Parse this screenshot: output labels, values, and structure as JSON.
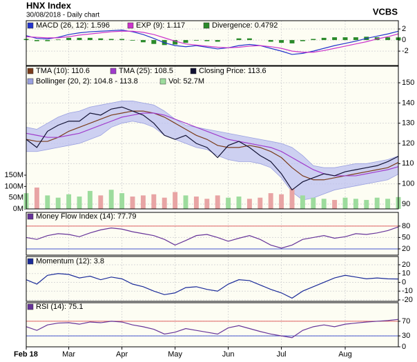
{
  "header": {
    "title": "HNX Index",
    "subtitle": "30/08/2018 - Daily chart",
    "brand": "VCBS"
  },
  "chart_data": [
    {
      "type": "line",
      "ylim": [
        -4.6,
        3.5
      ],
      "yticks": [
        2,
        0,
        -2
      ],
      "grid": true,
      "series": [
        {
          "name": "MACD (26, 12): 1.596",
          "color": "#2233cc",
          "style": "line",
          "values": [
            0.8,
            0.3,
            0.2,
            0.5,
            1,
            1.3,
            1.5,
            1.6,
            1.7,
            1.8,
            1.5,
            1,
            0.3,
            -0.5,
            -1,
            -1.2,
            -1,
            -1.3,
            -1.6,
            -1.4,
            -1,
            -0.8,
            -1,
            -1.5,
            -2,
            -2.6,
            -2.4,
            -2,
            -1.5,
            -1,
            -0.6,
            -0.2,
            0.3,
            0.7,
            1.1,
            1.596
          ]
        },
        {
          "name": "EXP (9): 1.117",
          "color": "#cc33cc",
          "style": "line",
          "values": [
            0.6,
            0.5,
            0.4,
            0.4,
            0.6,
            0.9,
            1.1,
            1.3,
            1.5,
            1.6,
            1.6,
            1.4,
            1,
            0.4,
            -0.2,
            -0.7,
            -0.9,
            -1.1,
            -1.3,
            -1.4,
            -1.3,
            -1.1,
            -1,
            -1.2,
            -1.5,
            -2,
            -2.2,
            -2.2,
            -1.9,
            -1.5,
            -1.1,
            -0.7,
            -0.3,
            0.2,
            0.6,
            1.117
          ]
        },
        {
          "name": "Divergence: 0.4792",
          "color": "#2a8a2a",
          "style": "bar",
          "values": [
            0.2,
            -0.2,
            -0.2,
            0.1,
            0.4,
            0.4,
            0.4,
            0.3,
            0.2,
            0.2,
            -0.1,
            -0.4,
            -0.7,
            -0.9,
            -0.8,
            -0.5,
            -0.1,
            -0.2,
            -0.3,
            0,
            0.3,
            0.3,
            0,
            -0.3,
            -0.5,
            -0.6,
            -0.2,
            0.2,
            0.4,
            0.5,
            0.5,
            0.5,
            0.6,
            0.5,
            0.5,
            0.4792
          ]
        }
      ]
    },
    {
      "type": "line",
      "ylim": [
        87.6,
        158.2
      ],
      "yticks": [
        90,
        100,
        110,
        120,
        130,
        140,
        150
      ],
      "grid": true,
      "y2lim": [
        0,
        634
      ],
      "y2ticks": [
        {
          "value": 0,
          "label": "0M"
        },
        {
          "value": 50,
          "label": "50M"
        },
        {
          "value": 100,
          "label": "100M"
        },
        {
          "value": 150,
          "label": "150M"
        }
      ],
      "series": [
        {
          "name": "TMA (10): 110.6",
          "color": "#7a3b1a",
          "style": "line",
          "values": [
            122,
            121,
            121,
            123,
            126,
            128,
            130,
            132,
            134,
            135,
            136,
            136,
            135,
            133,
            130,
            127,
            124,
            122,
            119,
            118,
            118,
            119,
            118,
            116,
            113,
            108,
            104,
            102,
            102,
            103,
            104,
            105,
            106,
            107,
            108,
            110.6
          ]
        },
        {
          "name": "TMA (25): 108.5",
          "color": "#a03ccc",
          "style": "line",
          "values": [
            125,
            124,
            123,
            123,
            124,
            125,
            127,
            129,
            131,
            133,
            134,
            135,
            135,
            134,
            132,
            130,
            128,
            126,
            124,
            122,
            121,
            120,
            119,
            118,
            116,
            113,
            110,
            107,
            105,
            104,
            104,
            104,
            105,
            106,
            107,
            108.5
          ]
        },
        {
          "name": "Closing Price: 113.6",
          "color": "#111133",
          "style": "line",
          "values": [
            122,
            118,
            126,
            129,
            131,
            131,
            135,
            134,
            137,
            138,
            136,
            134,
            130,
            124,
            122,
            124,
            120,
            118,
            113,
            119,
            121,
            118,
            114,
            111,
            105,
            97,
            101,
            103,
            105,
            104,
            106,
            107,
            108,
            109,
            111,
            113.6
          ]
        },
        {
          "name": "Bollinger (20, 2): 104.8 - 113.8",
          "color": "#bcc0f0",
          "style": "band",
          "upper": [
            128,
            127,
            130,
            133,
            135,
            136,
            138,
            139,
            140,
            141,
            141,
            140,
            139,
            136,
            132,
            129,
            128,
            127,
            126,
            125,
            124,
            123,
            122,
            121,
            120,
            118,
            114,
            109,
            108,
            108,
            109,
            110,
            110,
            111,
            112,
            113.8
          ],
          "lower": [
            116,
            116,
            117,
            118,
            119,
            120,
            122,
            124,
            128,
            130,
            131,
            130,
            128,
            124,
            122,
            120,
            118,
            117,
            114,
            112,
            111,
            111,
            110,
            108,
            103,
            96,
            92,
            93,
            95,
            97,
            98,
            99,
            100,
            101,
            102,
            104.8
          ]
        },
        {
          "name": "Vol: 52.7M",
          "color": "#9ddc9d",
          "down_color": "#e8a4a4",
          "compare_to": 2,
          "style": "bar",
          "axis": "y2",
          "values": [
            70,
            95,
            60,
            50,
            65,
            55,
            80,
            60,
            85,
            70,
            55,
            60,
            65,
            50,
            75,
            60,
            55,
            45,
            60,
            50,
            55,
            45,
            50,
            70,
            65,
            90,
            60,
            50,
            45,
            40,
            50,
            45,
            40,
            50,
            45,
            52.7
          ]
        }
      ]
    },
    {
      "type": "line",
      "ylim": [
        3.6,
        116
      ],
      "yticks": [
        20,
        50,
        80
      ],
      "grid": true,
      "reference_lines": [
        {
          "value": 80,
          "color": "#e06060"
        },
        {
          "value": 20,
          "color": "#4455cc"
        }
      ],
      "series": [
        {
          "name": "Money Flow Index (14): 77.79",
          "color": "#663399",
          "style": "line",
          "values": [
            50,
            45,
            55,
            60,
            58,
            52,
            62,
            70,
            75,
            72,
            65,
            60,
            55,
            45,
            30,
            42,
            55,
            58,
            50,
            40,
            48,
            55,
            45,
            30,
            22,
            30,
            45,
            50,
            55,
            48,
            52,
            60,
            58,
            62,
            68,
            77.79
          ]
        }
      ]
    },
    {
      "type": "line",
      "ylim": [
        -21.6,
        29.4
      ],
      "yticks": [
        -20,
        -10,
        0,
        10,
        20
      ],
      "grid": true,
      "series": [
        {
          "name": "Momentum (12): 3.8",
          "color": "#1a2a99",
          "style": "line",
          "values": [
            3,
            -2,
            8,
            10,
            9,
            5,
            7,
            3,
            6,
            4,
            -2,
            -5,
            -10,
            -14,
            -12,
            -6,
            -5,
            -8,
            -10,
            -2,
            3,
            2,
            -3,
            -8,
            -12,
            -18,
            -10,
            -5,
            0,
            5,
            8,
            6,
            4,
            5,
            4,
            3.8
          ]
        }
      ]
    },
    {
      "type": "line",
      "ylim": [
        0,
        120.8
      ],
      "yticks": [
        0,
        30,
        70
      ],
      "grid": true,
      "reference_lines": [
        {
          "value": 70,
          "color": "#e06060"
        },
        {
          "value": 30,
          "color": "#4455cc"
        }
      ],
      "categories": [
        "Feb 18",
        null,
        null,
        null,
        "Mar",
        null,
        null,
        null,
        null,
        "Apr",
        null,
        null,
        null,
        null,
        "May",
        null,
        null,
        null,
        null,
        "Jun",
        null,
        null,
        null,
        null,
        "Jul",
        null,
        null,
        null,
        null,
        null,
        "Aug",
        null,
        null,
        null,
        null,
        null
      ],
      "series": [
        {
          "name": "RSI (14): 75.1",
          "color": "#663399",
          "style": "line",
          "values": [
            55,
            45,
            60,
            65,
            66,
            62,
            68,
            66,
            70,
            68,
            60,
            55,
            48,
            35,
            40,
            50,
            45,
            40,
            35,
            52,
            58,
            50,
            42,
            35,
            30,
            25,
            45,
            55,
            60,
            55,
            62,
            65,
            68,
            70,
            72,
            75.1
          ]
        }
      ]
    }
  ]
}
